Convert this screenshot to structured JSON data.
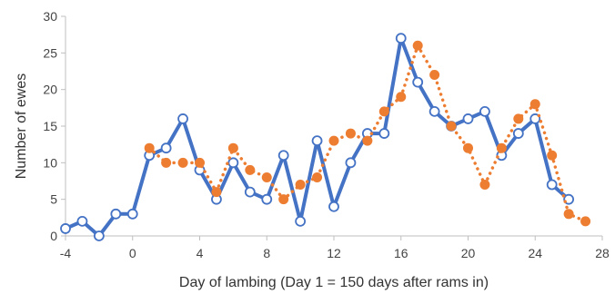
{
  "chart_data": {
    "type": "line",
    "title": "",
    "xlabel": "Day of lambing (Day 1 = 150 days after rams in)",
    "ylabel": "Number of ewes",
    "xlim": [
      -4,
      28
    ],
    "ylim": [
      0,
      30
    ],
    "xticks": [
      -4,
      0,
      4,
      8,
      12,
      16,
      20,
      24,
      28
    ],
    "yticks": [
      0,
      5,
      10,
      15,
      20,
      25,
      30
    ],
    "grid": false,
    "legend": "none",
    "series": [
      {
        "style": "solid line with open circle markers",
        "color": "#4472C4",
        "x": [
          -4,
          -3,
          -2,
          -1,
          0,
          1,
          2,
          3,
          4,
          5,
          6,
          7,
          8,
          9,
          10,
          11,
          12,
          13,
          14,
          15,
          16,
          17,
          18,
          19,
          20,
          21,
          22,
          23,
          24,
          25,
          26
        ],
        "y": [
          1,
          2,
          0,
          3,
          3,
          11,
          12,
          16,
          9,
          5,
          10,
          6,
          5,
          11,
          2,
          13,
          4,
          10,
          14,
          14,
          27,
          21,
          17,
          15,
          16,
          17,
          11,
          14,
          16,
          7,
          5
        ]
      },
      {
        "style": "dotted line with filled circle markers",
        "color": "#ED7D31",
        "x": [
          1,
          2,
          3,
          4,
          5,
          6,
          7,
          8,
          9,
          10,
          11,
          12,
          13,
          14,
          15,
          16,
          17,
          18,
          19,
          20,
          21,
          22,
          23,
          24,
          25,
          26,
          27
        ],
        "y": [
          12,
          10,
          10,
          10,
          6,
          12,
          9,
          8,
          5,
          7,
          8,
          13,
          14,
          13,
          17,
          19,
          26,
          22,
          15,
          12,
          7,
          12,
          16,
          18,
          11,
          3,
          2
        ]
      }
    ]
  }
}
